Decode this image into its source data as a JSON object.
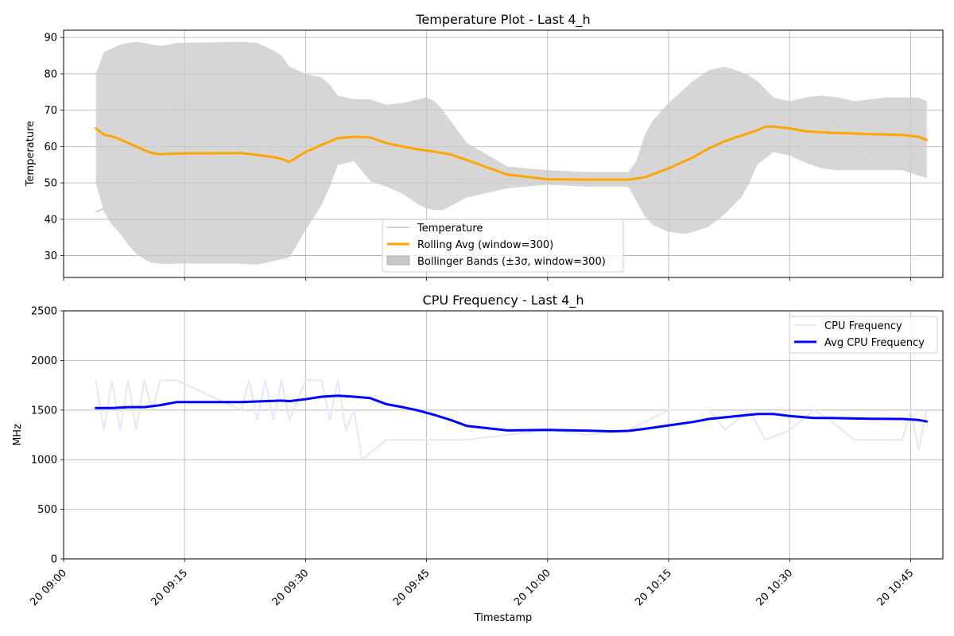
{
  "chart_data": [
    {
      "type": "line",
      "title": "Temperature Plot - Last 4_h",
      "xlabel": "",
      "ylabel": "Temperature",
      "ylim": [
        24,
        92
      ],
      "yticks": [
        30,
        40,
        50,
        60,
        70,
        80,
        90
      ],
      "xlim": [
        "20 09:00",
        "20 10:49"
      ],
      "grid": true,
      "legend_position": "bottom-center",
      "series": [
        {
          "name": "Temperature",
          "color": "#d3d3d3",
          "x": [
            "20 09:04",
            "20 09:05",
            "20 09:06",
            "20 09:07",
            "20 09:08",
            "20 09:10",
            "20 09:11",
            "20 09:12",
            "20 09:13",
            "20 09:14",
            "20 09:22",
            "20 09:23",
            "20 09:24",
            "20 09:25",
            "20 09:26",
            "20 09:27",
            "20 09:28",
            "20 09:29",
            "20 09:30",
            "20 09:31",
            "20 09:32",
            "20 09:33",
            "20 09:34",
            "20 09:35",
            "20 09:36",
            "20 09:37",
            "20 09:38",
            "20 09:39",
            "20 09:40",
            "20 09:42",
            "20 09:45",
            "20 09:50",
            "20 10:00",
            "20 10:10",
            "20 10:11",
            "20 10:12",
            "20 10:14",
            "20 10:16",
            "20 10:18",
            "20 10:20",
            "20 10:22",
            "20 10:24",
            "20 10:26",
            "20 10:27",
            "20 10:28",
            "20 10:30",
            "20 10:32",
            "20 10:34",
            "20 10:36",
            "20 10:38",
            "20 10:40",
            "20 10:42",
            "20 10:44",
            "20 10:45",
            "20 10:47"
          ],
          "values": [
            42,
            43,
            47,
            48,
            47,
            48,
            57,
            63,
            68,
            71,
            72,
            64,
            62,
            60,
            61,
            59,
            58,
            62,
            66,
            65,
            62,
            60,
            58,
            58,
            58,
            58,
            60,
            57,
            55,
            54,
            52,
            51,
            51,
            51,
            55,
            60,
            66,
            67,
            68,
            67,
            65,
            66,
            68,
            68,
            62,
            61,
            60,
            63,
            68,
            63,
            58,
            57,
            56,
            57,
            57
          ]
        },
        {
          "name": "Rolling Avg (window=300)",
          "color": "#ffa500",
          "x": [
            "20 09:04",
            "20 09:05",
            "20 09:06",
            "20 09:07",
            "20 09:08",
            "20 09:10",
            "20 09:11",
            "20 09:12",
            "20 09:14",
            "20 09:22",
            "20 09:24",
            "20 09:26",
            "20 09:27",
            "20 09:28",
            "20 09:30",
            "20 09:32",
            "20 09:34",
            "20 09:36",
            "20 09:38",
            "20 09:40",
            "20 09:42",
            "20 09:44",
            "20 09:46",
            "20 09:48",
            "20 09:50",
            "20 09:52",
            "20 09:55",
            "20 10:00",
            "20 10:05",
            "20 10:10",
            "20 10:12",
            "20 10:15",
            "20 10:18",
            "20 10:20",
            "20 10:22",
            "20 10:24",
            "20 10:26",
            "20 10:27",
            "20 10:28",
            "20 10:30",
            "20 10:32",
            "20 10:35",
            "20 10:38",
            "20 10:40",
            "20 10:44",
            "20 10:46",
            "20 10:47"
          ],
          "values": [
            65,
            63.3,
            62.8,
            62,
            61,
            59,
            58.2,
            57.9,
            58.1,
            58.2,
            57.7,
            57.1,
            56.6,
            55.8,
            58.5,
            60.5,
            62.3,
            62.7,
            62.5,
            61,
            60,
            59.2,
            58.6,
            57.8,
            56.3,
            54.7,
            52.3,
            51,
            50.9,
            50.9,
            51.5,
            54,
            57,
            59.5,
            61.5,
            63,
            64.5,
            65.5,
            65.5,
            65,
            64.2,
            63.8,
            63.6,
            63.4,
            63.2,
            62.7,
            61.8
          ]
        }
      ],
      "bands": {
        "name": "Bollinger Bands (±3σ, window=300)",
        "color": "#c8c8c8",
        "x": [
          "20 09:04",
          "20 09:05",
          "20 09:06",
          "20 09:07",
          "20 09:08",
          "20 09:09",
          "20 09:10",
          "20 09:11",
          "20 09:12",
          "20 09:13",
          "20 09:14",
          "20 09:22",
          "20 09:24",
          "20 09:26",
          "20 09:27",
          "20 09:28",
          "20 09:30",
          "20 09:32",
          "20 09:33",
          "20 09:34",
          "20 09:36",
          "20 09:38",
          "20 09:40",
          "20 09:42",
          "20 09:44",
          "20 09:45",
          "20 09:46",
          "20 09:47",
          "20 09:50",
          "20 09:55",
          "20 10:00",
          "20 10:05",
          "20 10:10",
          "20 10:11",
          "20 10:12",
          "20 10:13",
          "20 10:15",
          "20 10:17",
          "20 10:18",
          "20 10:20",
          "20 10:22",
          "20 10:24",
          "20 10:25",
          "20 10:26",
          "20 10:28",
          "20 10:30",
          "20 10:32",
          "20 10:34",
          "20 10:36",
          "20 10:38",
          "20 10:40",
          "20 10:42",
          "20 10:44",
          "20 10:46",
          "20 10:47"
        ],
        "upper": [
          80,
          86,
          87,
          88,
          88.5,
          88.8,
          88.5,
          88,
          87.7,
          88,
          88.5,
          88.8,
          88.5,
          86.5,
          85,
          82,
          80,
          79,
          77,
          74,
          73,
          73,
          71.5,
          72,
          73,
          73.5,
          72.5,
          70,
          61,
          54.5,
          53.5,
          53,
          53,
          56,
          63,
          67,
          72,
          76,
          78,
          81,
          82,
          80.5,
          79.5,
          78,
          73.5,
          72.5,
          73.5,
          74,
          73.5,
          72.5,
          73,
          73.5,
          73.5,
          73.5,
          72.5
        ],
        "lower": [
          50,
          42,
          38.5,
          36,
          33,
          30.5,
          29,
          28,
          27.8,
          27.7,
          27.8,
          27.8,
          27.5,
          28.5,
          29,
          29.5,
          37,
          44,
          49,
          55,
          56,
          50.5,
          49,
          47,
          44,
          43,
          42.5,
          42.5,
          46,
          48.5,
          49.5,
          49,
          49,
          45,
          41,
          38.5,
          36.5,
          36,
          36.5,
          38,
          41.5,
          46,
          50,
          55,
          58.5,
          57.5,
          55.5,
          54,
          53.5,
          53.5,
          53.5,
          53.5,
          53.5,
          52,
          51.3
        ]
      }
    },
    {
      "type": "line",
      "title": "CPU Frequency - Last 4_h",
      "xlabel": "Timestamp",
      "ylabel": "MHz",
      "ylim": [
        0,
        2500
      ],
      "yticks": [
        0,
        500,
        1000,
        1500,
        2000,
        2500
      ],
      "xlim": [
        "20 09:00",
        "20 10:49"
      ],
      "xticks": [
        "20 09:00",
        "20 09:15",
        "20 09:30",
        "20 09:45",
        "20 10:00",
        "20 10:15",
        "20 10:30",
        "20 10:45"
      ],
      "grid": true,
      "legend_position": "upper-right",
      "series": [
        {
          "name": "CPU Frequency",
          "color": "#e6e6fa",
          "x": [
            "20 09:04",
            "20 09:05",
            "20 09:06",
            "20 09:07",
            "20 09:08",
            "20 09:09",
            "20 09:10",
            "20 09:11",
            "20 09:12",
            "20 09:14",
            "20 09:22",
            "20 09:23",
            "20 09:24",
            "20 09:25",
            "20 09:26",
            "20 09:27",
            "20 09:28",
            "20 09:30",
            "20 09:32",
            "20 09:33",
            "20 09:34",
            "20 09:35",
            "20 09:36",
            "20 09:37",
            "20 09:40",
            "20 09:45",
            "20 09:50",
            "20 09:55",
            "20 10:00",
            "20 10:05",
            "20 10:10",
            "20 10:15",
            "20 10:20",
            "20 10:22",
            "20 10:25",
            "20 10:27",
            "20 10:30",
            "20 10:33",
            "20 10:35",
            "20 10:38",
            "20 10:40",
            "20 10:42",
            "20 10:44",
            "20 10:45",
            "20 10:46",
            "20 10:47"
          ],
          "values": [
            1800,
            1300,
            1800,
            1300,
            1800,
            1300,
            1800,
            1500,
            1800,
            1800,
            1500,
            1800,
            1400,
            1800,
            1400,
            1800,
            1400,
            1800,
            1800,
            1400,
            1800,
            1300,
            1500,
            1000,
            1200,
            1200,
            1200,
            1250,
            1300,
            1250,
            1300,
            1500,
            1500,
            1300,
            1500,
            1200,
            1300,
            1500,
            1400,
            1200,
            1200,
            1200,
            1200,
            1500,
            1100,
            1500
          ]
        },
        {
          "name": "Avg CPU Frequency",
          "color": "#0000ff",
          "x": [
            "20 09:04",
            "20 09:06",
            "20 09:08",
            "20 09:10",
            "20 09:12",
            "20 09:14",
            "20 09:20",
            "20 09:22",
            "20 09:25",
            "20 09:27",
            "20 09:28",
            "20 09:30",
            "20 09:32",
            "20 09:34",
            "20 09:36",
            "20 09:38",
            "20 09:40",
            "20 09:42",
            "20 09:44",
            "20 09:46",
            "20 09:48",
            "20 09:50",
            "20 09:55",
            "20 10:00",
            "20 10:05",
            "20 10:08",
            "20 10:10",
            "20 10:12",
            "20 10:15",
            "20 10:18",
            "20 10:20",
            "20 10:23",
            "20 10:26",
            "20 10:28",
            "20 10:30",
            "20 10:33",
            "20 10:35",
            "20 10:38",
            "20 10:40",
            "20 10:44",
            "20 10:46",
            "20 10:47"
          ],
          "values": [
            1520,
            1520,
            1530,
            1530,
            1550,
            1580,
            1580,
            1580,
            1590,
            1595,
            1590,
            1610,
            1635,
            1645,
            1635,
            1620,
            1560,
            1530,
            1495,
            1450,
            1400,
            1340,
            1295,
            1300,
            1292,
            1285,
            1290,
            1310,
            1345,
            1380,
            1410,
            1435,
            1460,
            1460,
            1440,
            1420,
            1420,
            1415,
            1412,
            1410,
            1400,
            1385
          ]
        }
      ]
    }
  ]
}
